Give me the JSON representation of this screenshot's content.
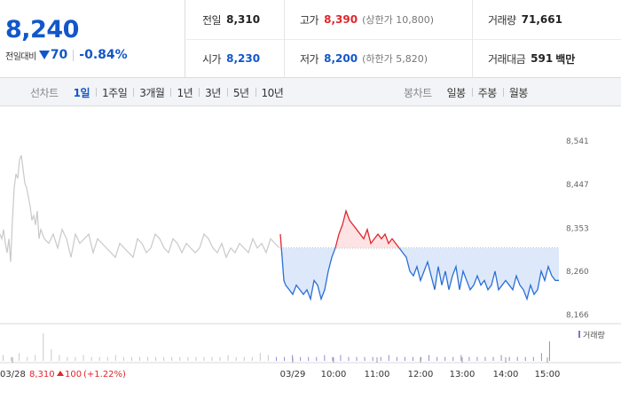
{
  "quote": {
    "price": "8,240",
    "change_label": "전일대비",
    "change": "70",
    "change_pct": "-0.84%",
    "colors": {
      "up": "#e0262d",
      "down": "#1257c9"
    }
  },
  "info": {
    "prev_close": {
      "label": "전일",
      "value": "8,310"
    },
    "high": {
      "label": "고가",
      "value": "8,390",
      "limit": "(상한가 10,800)"
    },
    "volume": {
      "label": "거래량",
      "value": "71,661"
    },
    "open": {
      "label": "시가",
      "value": "8,230"
    },
    "low": {
      "label": "저가",
      "value": "8,200",
      "limit": "(하한가 5,820)"
    },
    "amount": {
      "label": "거래대금",
      "value": "591",
      "unit": "백만"
    }
  },
  "tabs": {
    "line_title": "선차트",
    "line_items": [
      "1일",
      "1주일",
      "3개월",
      "1년",
      "3년",
      "5년",
      "10년"
    ],
    "line_active": 0,
    "candle_title": "봉차트",
    "candle_items": [
      "일봉",
      "주봉",
      "월봉"
    ]
  },
  "chart_data": {
    "type": "line",
    "title": "",
    "xlabel": "",
    "ylabel": "",
    "y_ticks": [
      "8,541",
      "8,447",
      "8,353",
      "8,260",
      "8,166"
    ],
    "ylim": [
      8166,
      8541
    ],
    "baseline": 8310,
    "x_ticks": [
      "03/28",
      "03/29",
      "10:00",
      "11:00",
      "12:00",
      "13:00",
      "14:00",
      "15:00"
    ],
    "prev_day_label": "03/28",
    "prev_day_summary": "8,310",
    "prev_day_change": "100",
    "prev_day_change_pct": "(+1.22%)",
    "volume_legend": "거래량",
    "series": [
      {
        "name": "",
        "x": [
          0,
          2,
          4,
          6,
          8,
          10,
          12,
          14,
          16,
          18,
          20,
          22,
          24,
          26,
          28,
          30,
          32,
          34,
          36,
          38,
          40,
          42,
          44,
          46,
          48,
          50,
          55,
          60,
          65,
          70,
          75,
          80,
          85,
          90,
          95,
          100,
          105,
          110,
          115,
          120,
          125,
          130,
          135,
          140,
          145,
          150,
          155,
          160,
          165,
          170,
          175,
          180,
          185,
          190,
          195,
          200,
          205,
          210,
          215,
          220,
          225,
          230,
          235,
          240,
          245,
          250,
          255,
          260,
          265,
          270,
          275,
          280,
          285,
          290,
          295,
          300,
          305,
          310,
          315
        ],
        "values": [
          8340,
          8330,
          8350,
          8320,
          8300,
          8330,
          8280,
          8370,
          8440,
          8470,
          8460,
          8500,
          8510,
          8480,
          8450,
          8440,
          8420,
          8400,
          8370,
          8380,
          8360,
          8390,
          8330,
          8350,
          8340,
          8330,
          8320,
          8340,
          8310,
          8350,
          8330,
          8290,
          8340,
          8320,
          8330,
          8340,
          8300,
          8330,
          8320,
          8310,
          8300,
          8290,
          8320,
          8310,
          8300,
          8290,
          8330,
          8320,
          8300,
          8310,
          8340,
          8330,
          8310,
          8300,
          8330,
          8320,
          8300,
          8320,
          8310,
          8300,
          8310,
          8340,
          8330,
          8310,
          8300,
          8320,
          8290,
          8310,
          8300,
          8320,
          8310,
          8300,
          8330,
          8310,
          8320,
          8300,
          8330,
          8320,
          8310
        ]
      },
      {
        "name": "",
        "x": [
          316,
          318,
          320,
          322,
          326,
          330,
          334,
          338,
          342,
          346,
          350,
          354,
          358,
          362,
          366,
          370,
          374,
          378,
          382,
          386,
          390,
          394,
          398,
          402,
          406,
          410,
          414,
          418,
          422,
          426,
          430,
          434,
          438,
          442,
          446,
          450,
          454,
          458,
          462,
          466,
          470,
          474,
          478,
          482,
          486,
          490,
          494,
          498,
          502,
          506,
          510,
          514,
          518,
          522,
          526,
          530,
          534,
          538,
          542,
          546,
          550,
          554,
          558,
          562,
          566,
          570,
          574,
          578,
          582,
          586,
          590,
          594,
          598,
          602,
          606,
          610,
          614,
          618,
          622,
          626,
          630
        ],
        "values": [
          8340,
          8290,
          8240,
          8230,
          8220,
          8210,
          8230,
          8220,
          8210,
          8220,
          8200,
          8240,
          8230,
          8200,
          8220,
          8260,
          8290,
          8310,
          8340,
          8360,
          8390,
          8370,
          8360,
          8350,
          8340,
          8330,
          8350,
          8320,
          8330,
          8340,
          8330,
          8340,
          8320,
          8330,
          8320,
          8310,
          8300,
          8290,
          8260,
          8250,
          8270,
          8240,
          8260,
          8280,
          8250,
          8220,
          8270,
          8230,
          8260,
          8220,
          8250,
          8270,
          8220,
          8260,
          8240,
          8220,
          8230,
          8250,
          8230,
          8240,
          8220,
          8230,
          8260,
          8220,
          8230,
          8240,
          8230,
          8220,
          8250,
          8230,
          8220,
          8200,
          8230,
          8210,
          8220,
          8260,
          8240,
          8270,
          8250,
          8240,
          8240
        ]
      }
    ],
    "volume": [
      3,
      2,
      4,
      2,
      3,
      14,
      6,
      3,
      2,
      2,
      3,
      2,
      2,
      2,
      3,
      2,
      2,
      2,
      2,
      2,
      2,
      2,
      2,
      2,
      2,
      2,
      2,
      2,
      3,
      2,
      2,
      2,
      4,
      3,
      2,
      2,
      3,
      2,
      2,
      2,
      3,
      2,
      3,
      2,
      2,
      2,
      2,
      2,
      3,
      2,
      2,
      2,
      2,
      3,
      2,
      2,
      2,
      3,
      2,
      2,
      2,
      2,
      3,
      2,
      2,
      2,
      2,
      4,
      10
    ]
  }
}
